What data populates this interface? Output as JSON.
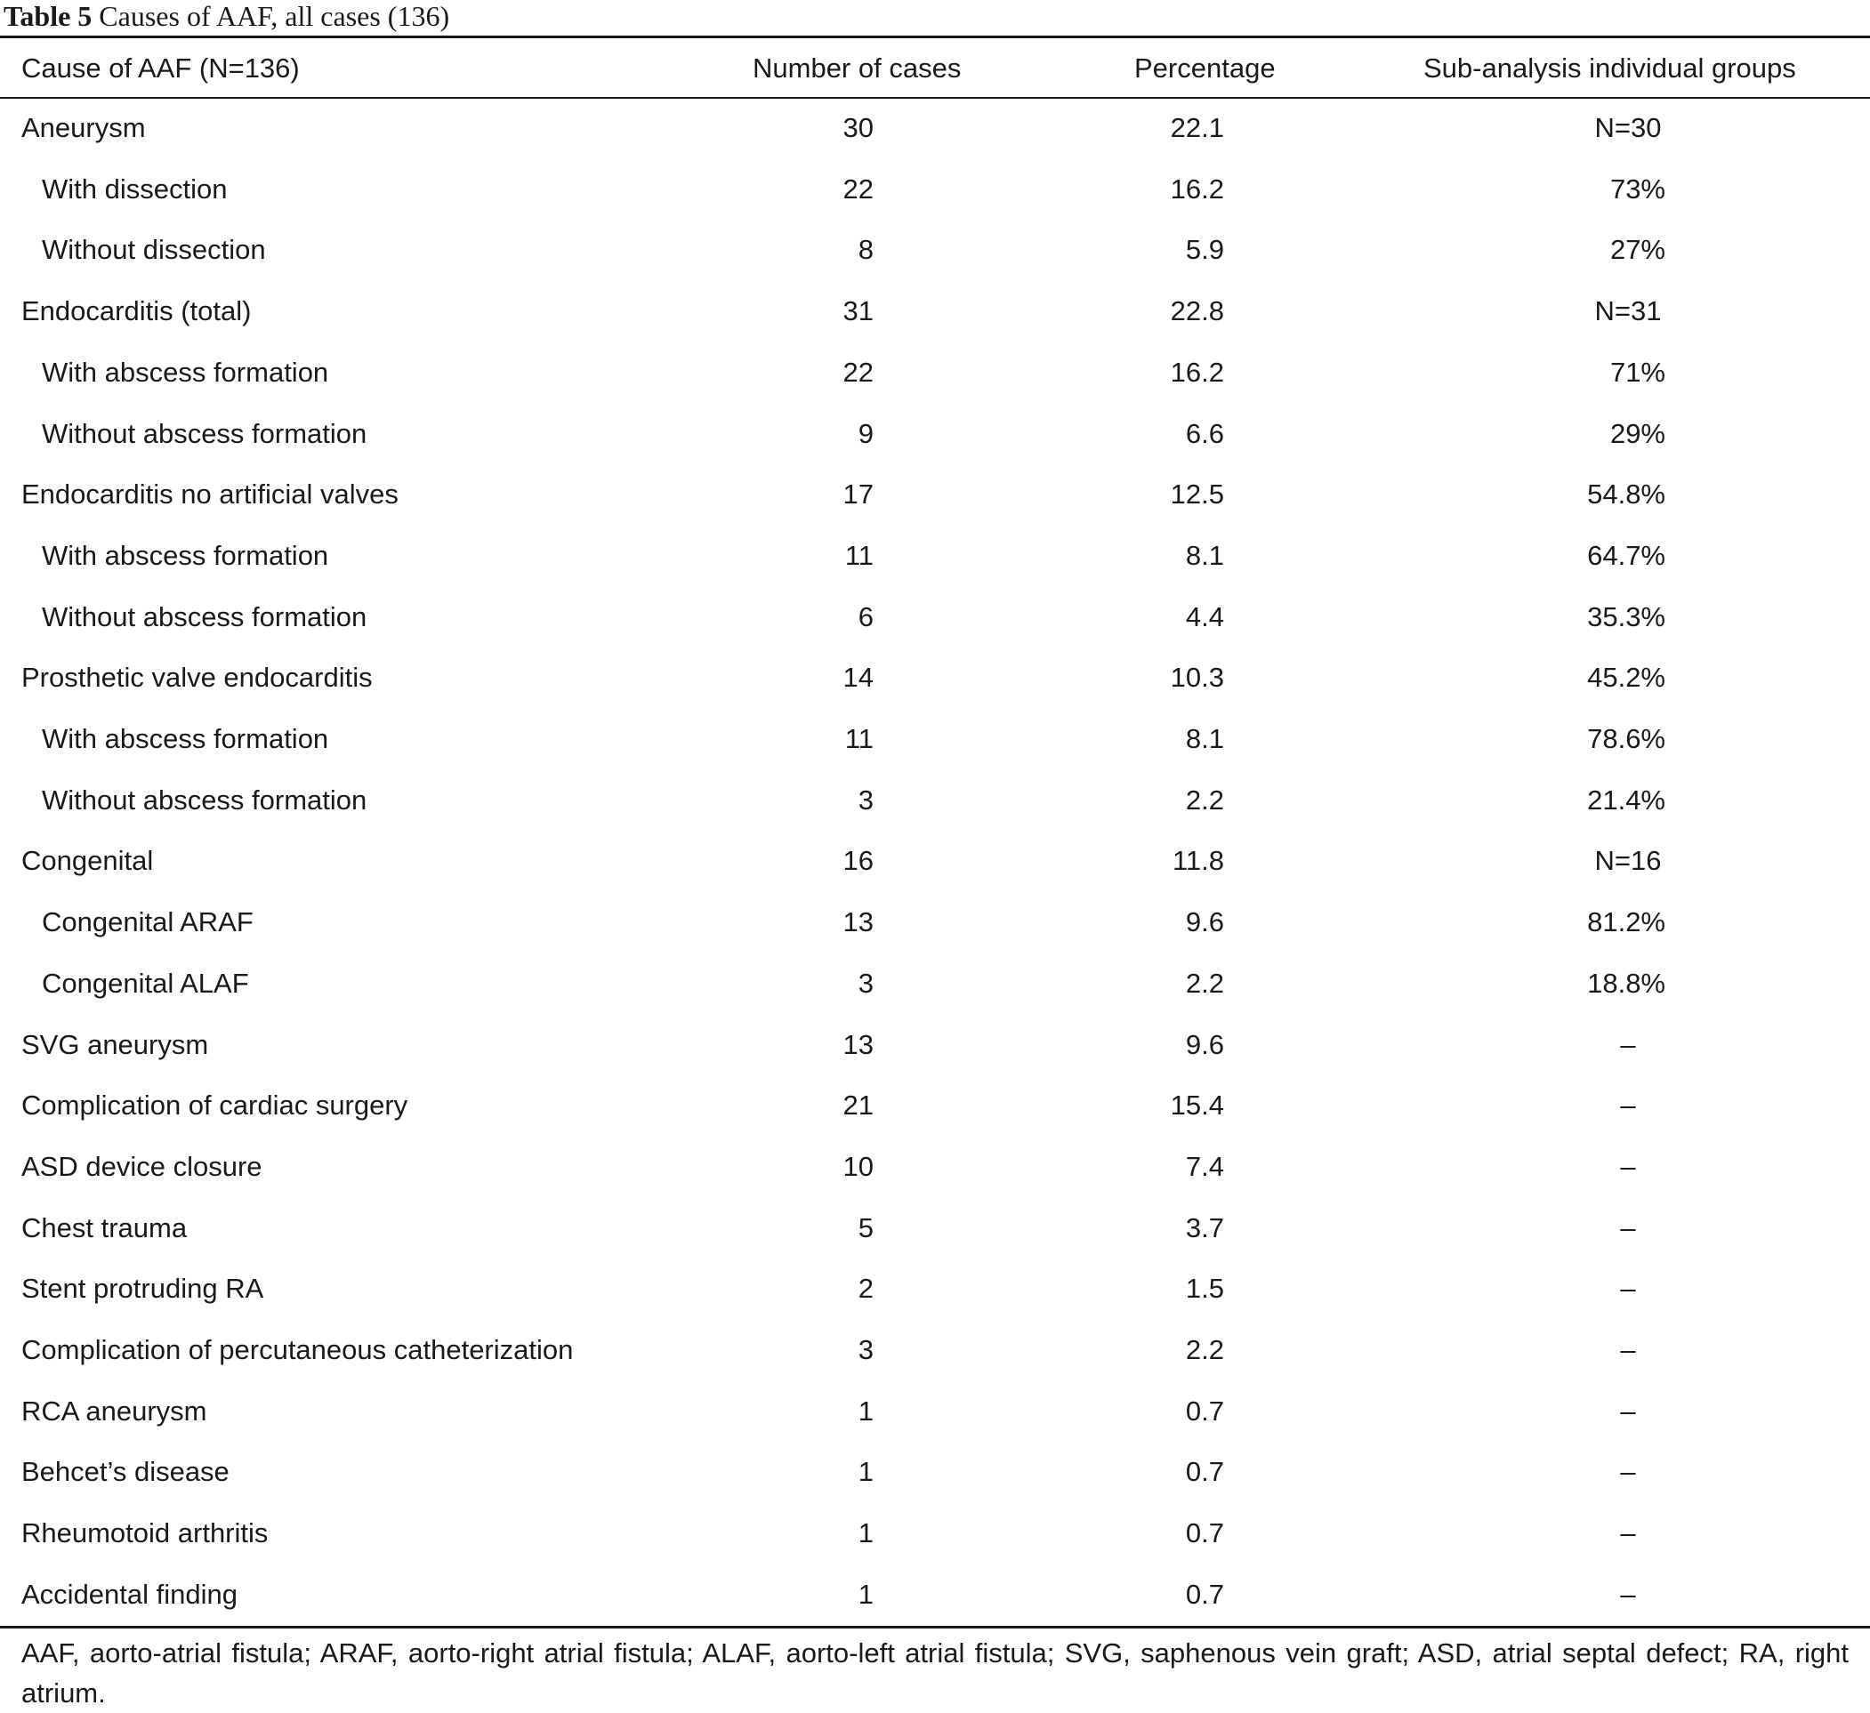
{
  "caption": {
    "label": "Table 5",
    "text": "Causes of AAF, all cases (136)"
  },
  "headers": {
    "cause": "Cause of AAF (N=136)",
    "number": "Number of cases",
    "percentage": "Percentage",
    "subanalysis": "Sub-analysis individual groups"
  },
  "rows": [
    {
      "cause": "Aneurysm",
      "indent": false,
      "number": "30",
      "percentage": "22.1",
      "sub": "N=30"
    },
    {
      "cause": "With dissection",
      "indent": true,
      "number": "22",
      "percentage": "16.2",
      "sub": "73%"
    },
    {
      "cause": "Without dissection",
      "indent": true,
      "number": "8",
      "percentage": "5.9",
      "sub": "27%"
    },
    {
      "cause": "Endocarditis (total)",
      "indent": false,
      "number": "31",
      "percentage": "22.8",
      "sub": "N=31"
    },
    {
      "cause": "With abscess formation",
      "indent": true,
      "number": "22",
      "percentage": "16.2",
      "sub": "71%"
    },
    {
      "cause": "Without abscess formation",
      "indent": true,
      "number": "9",
      "percentage": "6.6",
      "sub": "29%"
    },
    {
      "cause": "Endocarditis no artificial valves",
      "indent": false,
      "number": "17",
      "percentage": "12.5",
      "sub": "54.8%"
    },
    {
      "cause": "With abscess formation",
      "indent": true,
      "number": "11",
      "percentage": "8.1",
      "sub": "64.7%"
    },
    {
      "cause": "Without abscess formation",
      "indent": true,
      "number": "6",
      "percentage": "4.4",
      "sub": "35.3%"
    },
    {
      "cause": "Prosthetic valve endocarditis",
      "indent": false,
      "number": "14",
      "percentage": "10.3",
      "sub": "45.2%"
    },
    {
      "cause": "With abscess formation",
      "indent": true,
      "number": "11",
      "percentage": "8.1",
      "sub": "78.6%"
    },
    {
      "cause": "Without abscess formation",
      "indent": true,
      "number": "3",
      "percentage": "2.2",
      "sub": "21.4%"
    },
    {
      "cause": "Congenital",
      "indent": false,
      "number": "16",
      "percentage": "11.8",
      "sub": "N=16"
    },
    {
      "cause": "Congenital ARAF",
      "indent": true,
      "number": "13",
      "percentage": "9.6",
      "sub": "81.2%"
    },
    {
      "cause": "Congenital ALAF",
      "indent": true,
      "number": "3",
      "percentage": "2.2",
      "sub": "18.8%"
    },
    {
      "cause": "SVG aneurysm",
      "indent": false,
      "number": "13",
      "percentage": "9.6",
      "sub": "–"
    },
    {
      "cause": "Complication of cardiac surgery",
      "indent": false,
      "number": "21",
      "percentage": "15.4",
      "sub": "–"
    },
    {
      "cause": "ASD device closure",
      "indent": false,
      "number": "10",
      "percentage": "7.4",
      "sub": "–"
    },
    {
      "cause": "Chest trauma",
      "indent": false,
      "number": "5",
      "percentage": "3.7",
      "sub": "–"
    },
    {
      "cause": "Stent protruding RA",
      "indent": false,
      "number": "2",
      "percentage": "1.5",
      "sub": "–"
    },
    {
      "cause": "Complication of percutaneous catheterization",
      "indent": false,
      "number": "3",
      "percentage": "2.2",
      "sub": "–"
    },
    {
      "cause": "RCA aneurysm",
      "indent": false,
      "number": "1",
      "percentage": "0.7",
      "sub": "–"
    },
    {
      "cause": "Behcet’s disease",
      "indent": false,
      "number": "1",
      "percentage": "0.7",
      "sub": "–"
    },
    {
      "cause": "Rheumotoid arthritis",
      "indent": false,
      "number": "1",
      "percentage": "0.7",
      "sub": "–"
    },
    {
      "cause": "Accidental finding",
      "indent": false,
      "number": "1",
      "percentage": "0.7",
      "sub": "–"
    }
  ],
  "footnote": "AAF, aorto-atrial fistula; ARAF, aorto-right atrial fistula; ALAF, aorto-left atrial fistula; SVG, saphenous vein graft; ASD, atrial septal defect; RA, right atrium."
}
